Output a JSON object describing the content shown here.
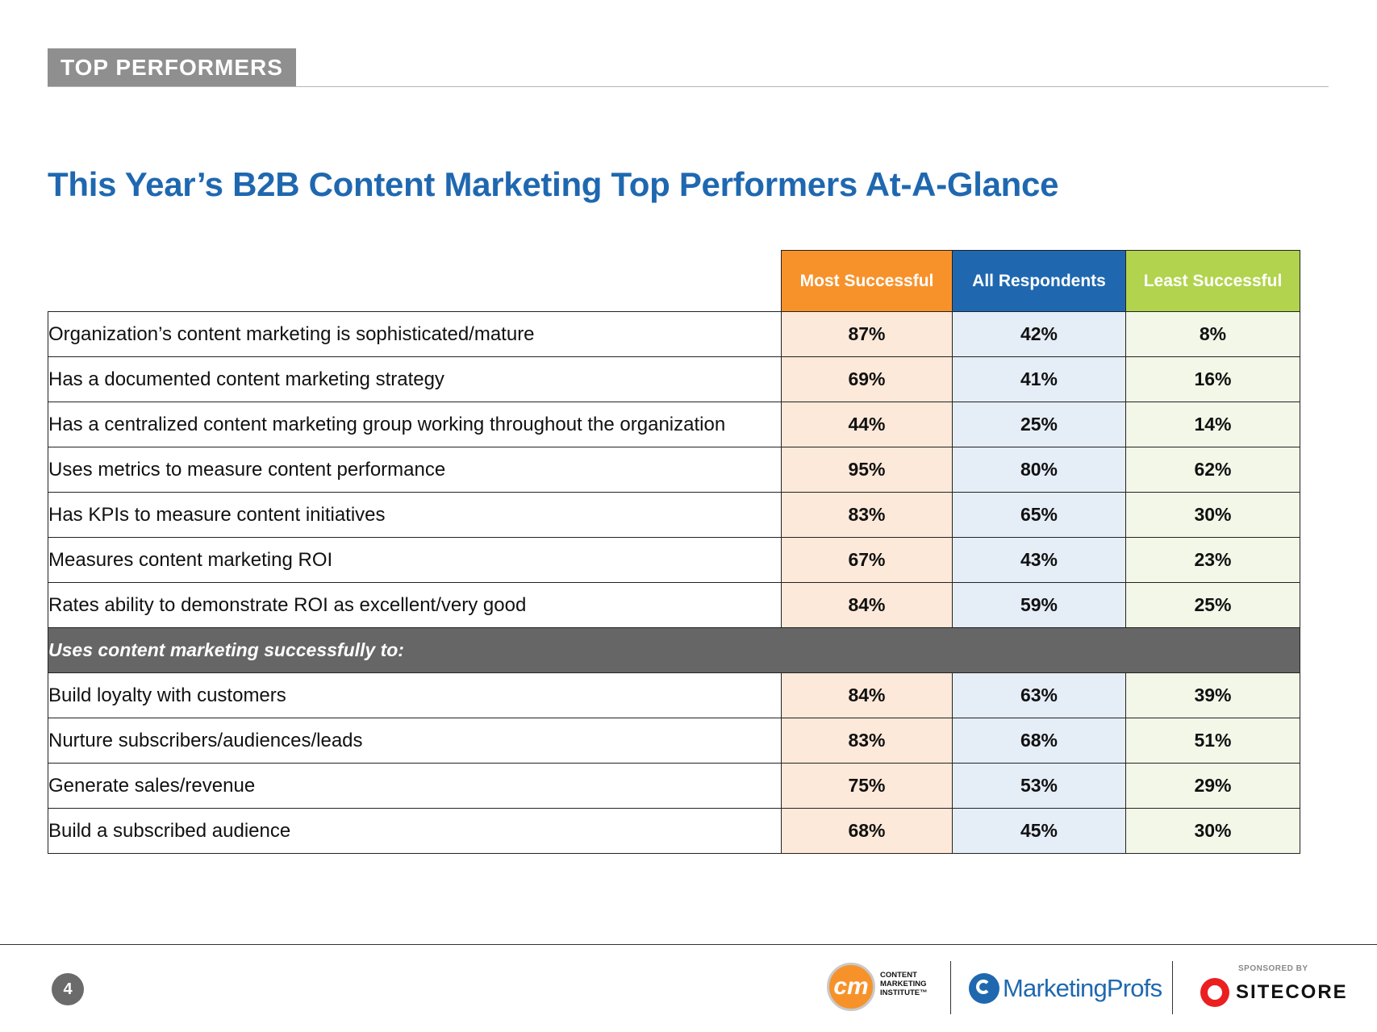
{
  "header": {
    "tag": "TOP PERFORMERS"
  },
  "title": "This Year’s B2B Content Marketing Top Performers At-A-Glance",
  "table": {
    "columns": [
      "Most Successful",
      "All Respondents",
      "Least Successful"
    ],
    "rows": [
      {
        "label": "Organization’s content marketing is sophisticated/mature",
        "values": [
          "87%",
          "42%",
          "8%"
        ]
      },
      {
        "label": "Has a documented content marketing strategy",
        "values": [
          "69%",
          "41%",
          "16%"
        ]
      },
      {
        "label": "Has a centralized content marketing group working throughout the organization",
        "values": [
          "44%",
          "25%",
          "14%"
        ]
      },
      {
        "label": "Uses metrics to measure content performance",
        "values": [
          "95%",
          "80%",
          "62%"
        ]
      },
      {
        "label": "Has KPIs to measure content initiatives",
        "values": [
          "83%",
          "65%",
          "30%"
        ]
      },
      {
        "label": "Measures content marketing ROI",
        "values": [
          "67%",
          "43%",
          "23%"
        ]
      },
      {
        "label": "Rates ability to demonstrate ROI as excellent/very good",
        "values": [
          "84%",
          "59%",
          "25%"
        ]
      }
    ],
    "section_heading": "Uses content marketing successfully to:",
    "section_rows": [
      {
        "label": "Build loyalty with customers",
        "values": [
          "84%",
          "63%",
          "39%"
        ]
      },
      {
        "label": "Nurture subscribers/audiences/leads",
        "values": [
          "83%",
          "68%",
          "51%"
        ]
      },
      {
        "label": "Generate sales/revenue",
        "values": [
          "75%",
          "53%",
          "29%"
        ]
      },
      {
        "label": "Build a subscribed audience",
        "values": [
          "68%",
          "45%",
          "30%"
        ]
      }
    ]
  },
  "footer": {
    "page_number": "4",
    "cmi_logo": {
      "mark": "cm",
      "line1": "CONTENT",
      "line2": "MARKETING",
      "line3": "INSTITUTE™"
    },
    "mp_logo": "MarketingProfs",
    "sponsored_label": "SPONSORED BY",
    "sponsor": "SITECORE"
  },
  "colors": {
    "title": "#1f68b0",
    "most": "#f7922b",
    "all": "#1f68b0",
    "least": "#b2d34e",
    "section": "#666666"
  }
}
